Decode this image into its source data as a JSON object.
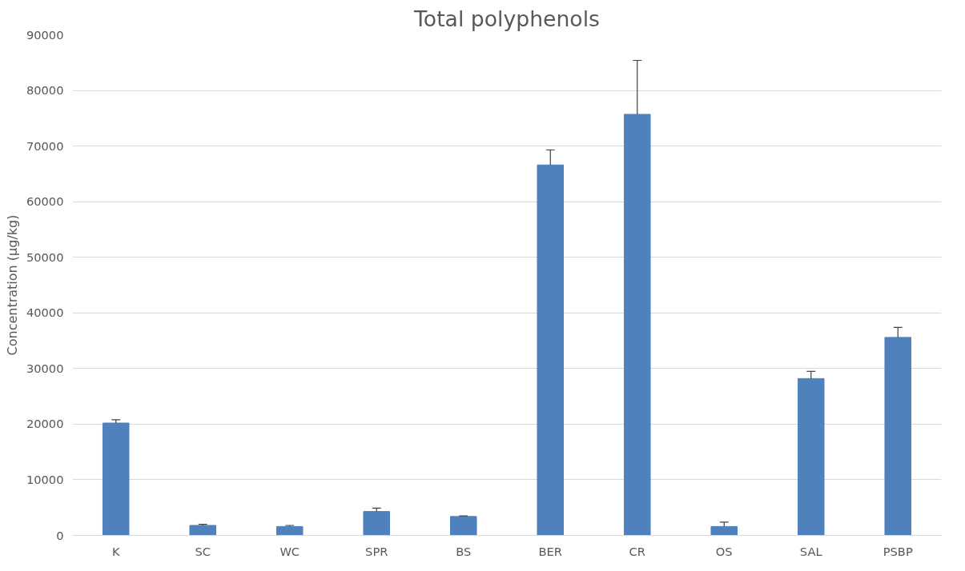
{
  "chart_data": {
    "type": "bar",
    "title": "Total polyphenols",
    "ylabel": "Concentration (µg/kg)",
    "categories": [
      "K",
      "SC",
      "WC",
      "SPR",
      "BS",
      "BER",
      "CR",
      "OS",
      "SAL",
      "PSBP"
    ],
    "values": [
      20200,
      1800,
      1600,
      4300,
      3400,
      66600,
      75700,
      1600,
      28200,
      35600
    ],
    "errors": [
      [
        20200,
        20800
      ],
      [
        1800,
        2000
      ],
      [
        1600,
        1800
      ],
      [
        4300,
        4900
      ],
      [
        3400,
        3500
      ],
      [
        66600,
        69300
      ],
      [
        75700,
        85400
      ],
      [
        1600,
        2400
      ],
      [
        28200,
        29500
      ],
      [
        35600,
        37400
      ]
    ],
    "color": "#4f81bd",
    "ylim": [
      0,
      90000
    ],
    "yticks": [
      0,
      10000,
      20000,
      30000,
      40000,
      50000,
      60000,
      70000,
      80000,
      90000
    ],
    "grid": "y"
  }
}
